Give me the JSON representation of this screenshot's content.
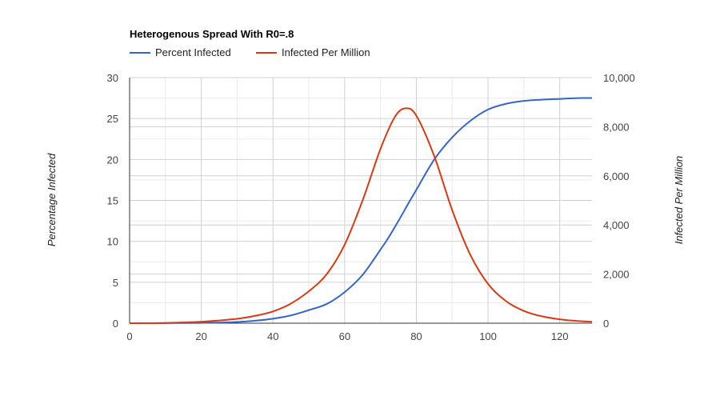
{
  "chart_data": {
    "type": "line",
    "title": "Heterogenous Spread With R0=.8",
    "left_axis": {
      "title": "Percentage Infected",
      "range": [
        0,
        30
      ],
      "ticks": [
        0,
        5,
        10,
        15,
        20,
        25,
        30
      ],
      "tick_labels": [
        "0",
        "5",
        "10",
        "15",
        "20",
        "25",
        "30"
      ]
    },
    "right_axis": {
      "title": "Infected Per Million",
      "range": [
        0,
        10000
      ],
      "ticks": [
        0,
        2000,
        4000,
        6000,
        8000,
        10000
      ],
      "tick_labels": [
        "0",
        "2,000",
        "4,000",
        "6,000",
        "8,000",
        "10,000"
      ]
    },
    "x_axis": {
      "range": [
        0,
        129
      ],
      "ticks": [
        0,
        20,
        40,
        60,
        80,
        100,
        120
      ],
      "tick_labels": [
        "0",
        "20",
        "40",
        "60",
        "80",
        "100",
        "120"
      ]
    },
    "grid": true,
    "legend": {
      "placement": "top-left"
    },
    "series": [
      {
        "name": "Percent Infected",
        "axis": "left",
        "color": "#3366cc",
        "x": [
          0,
          10,
          20,
          30,
          35,
          40,
          45,
          50,
          55,
          60,
          65,
          70,
          72,
          75,
          78,
          80,
          85,
          90,
          95,
          100,
          105,
          110,
          115,
          120,
          125,
          129
        ],
        "y": [
          0.0,
          0.01,
          0.04,
          0.15,
          0.3,
          0.55,
          0.95,
          1.6,
          2.35,
          3.8,
          5.9,
          9.0,
          10.3,
          12.5,
          14.8,
          16.3,
          20.0,
          22.7,
          24.7,
          26.1,
          26.8,
          27.15,
          27.3,
          27.4,
          27.5,
          27.5
        ]
      },
      {
        "name": "Infected Per Million",
        "axis": "right",
        "color": "#dc3912",
        "x": [
          0,
          10,
          20,
          30,
          35,
          40,
          45,
          50,
          55,
          60,
          65,
          70,
          74,
          77,
          80,
          85,
          90,
          95,
          100,
          105,
          110,
          115,
          120,
          125,
          129
        ],
        "y": [
          0,
          10,
          60,
          180,
          300,
          480,
          800,
          1300,
          2000,
          3200,
          5000,
          7100,
          8400,
          8750,
          8450,
          6800,
          4600,
          2800,
          1600,
          900,
          500,
          280,
          160,
          90,
          60
        ]
      }
    ]
  }
}
